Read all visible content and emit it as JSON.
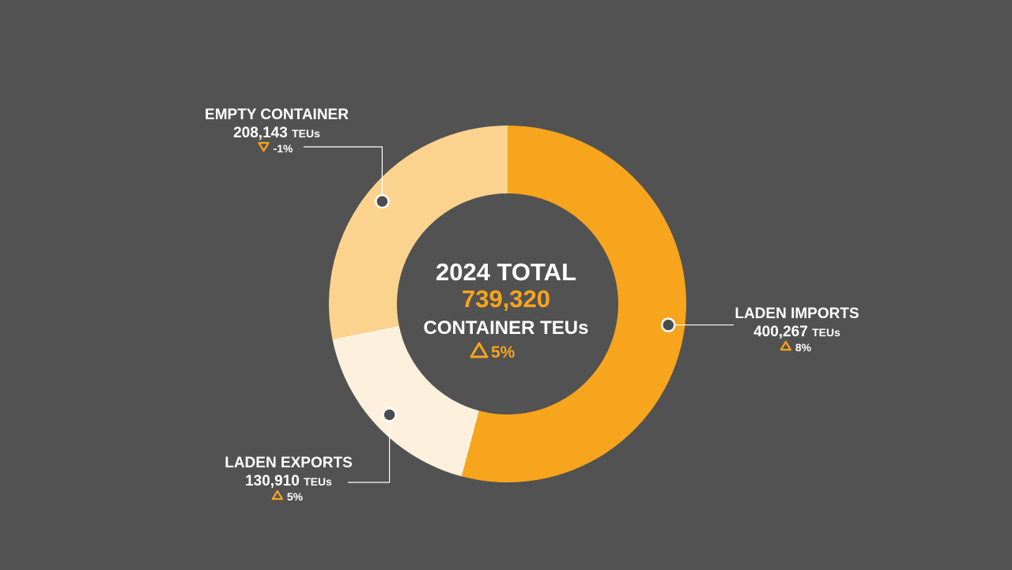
{
  "colors": {
    "background": "#525252",
    "text": "#ffffff",
    "accent": "#f7a51d",
    "marker_fill": "#4d4d4d"
  },
  "chart_data": {
    "type": "donut",
    "unit": "TEUs",
    "center": {
      "title": "2024 TOTAL",
      "total": "739,320",
      "subtitle": "CONTAINER TEUs",
      "change": "5%",
      "change_direction": "up"
    },
    "series": [
      {
        "name": "LADEN IMPORTS",
        "value": 400267,
        "value_label": "400,267",
        "unit": "TEUs",
        "change": "8%",
        "change_direction": "up",
        "color": "#f7a51d"
      },
      {
        "name": "LADEN EXPORTS",
        "value": 130910,
        "value_label": "130,910",
        "unit": "TEUs",
        "change": "5%",
        "change_direction": "up",
        "color": "#fdf0dc"
      },
      {
        "name": "EMPTY CONTAINER",
        "value": 208143,
        "value_label": "208,143",
        "unit": "TEUs",
        "change": "-1%",
        "change_direction": "down",
        "color": "#fcd38e"
      }
    ]
  }
}
